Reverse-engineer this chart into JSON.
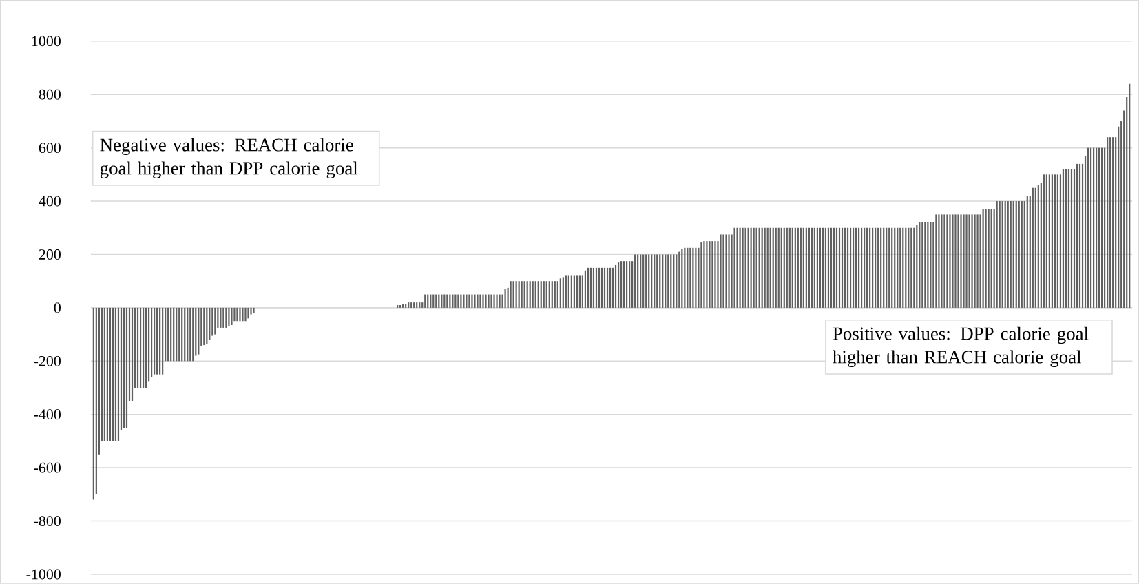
{
  "chart_data": {
    "type": "bar",
    "categories": [
      null,
      null,
      null,
      null,
      null,
      null,
      null,
      null,
      null,
      null,
      null,
      null,
      null,
      null,
      null,
      null,
      null,
      null,
      null,
      null,
      null,
      null,
      null,
      null,
      null,
      null,
      null,
      null,
      null,
      null,
      null,
      null,
      null,
      null,
      null,
      null,
      null,
      null,
      null,
      null,
      null,
      null,
      null,
      null,
      null,
      null,
      null,
      null,
      null,
      null,
      null,
      null,
      null,
      null,
      null,
      null,
      null,
      null,
      null,
      null,
      null,
      null,
      null,
      null,
      null,
      null,
      null,
      null,
      null,
      null,
      null,
      null,
      null,
      null,
      null,
      null,
      null,
      null,
      null,
      null,
      null,
      null,
      null,
      null,
      null,
      null,
      null,
      null,
      null,
      null,
      null,
      null,
      null,
      null,
      null,
      null,
      null,
      null,
      null,
      null,
      null,
      null,
      null,
      null,
      null,
      null,
      null,
      null,
      null,
      null,
      null,
      null,
      null,
      null,
      null,
      null,
      null,
      null,
      null,
      null,
      null,
      null,
      null,
      null,
      null,
      null,
      null,
      null,
      null,
      null,
      null,
      null,
      null,
      null,
      null,
      null,
      null,
      null,
      null,
      null,
      null,
      null,
      null,
      null,
      null,
      null,
      null,
      null,
      null,
      null,
      null,
      null,
      null,
      null,
      null,
      null,
      null,
      null,
      null,
      null,
      null,
      null,
      null,
      null,
      null,
      null,
      null,
      null,
      null,
      null,
      null,
      null,
      null,
      null,
      null,
      null,
      null,
      null,
      null,
      null,
      null,
      null,
      null,
      null,
      null,
      null,
      null,
      null,
      null,
      null,
      null,
      null,
      null,
      null,
      null,
      null,
      null,
      null,
      null,
      null,
      null,
      null,
      null,
      null,
      null,
      null,
      null,
      null,
      null,
      null,
      null,
      null,
      null,
      null,
      null,
      null,
      null,
      null,
      null,
      null,
      null,
      null,
      null,
      null,
      null,
      null,
      null,
      null,
      null,
      null,
      null,
      null,
      null,
      null,
      null,
      null,
      null,
      null,
      null,
      null,
      null,
      null,
      null,
      null,
      null,
      null,
      null,
      null,
      null,
      null,
      null,
      null,
      null,
      null,
      null,
      null,
      null,
      null,
      null,
      null,
      null,
      null,
      null,
      null,
      null,
      null,
      null,
      null,
      null,
      null,
      null,
      null,
      null,
      null,
      null,
      null,
      null,
      null,
      null,
      null,
      null,
      null,
      null,
      null,
      null,
      null,
      null,
      null,
      null,
      null,
      null,
      null,
      null,
      null,
      null,
      null,
      null,
      null,
      null,
      null,
      null,
      null,
      null,
      null,
      null,
      null,
      null,
      null,
      null,
      null,
      null,
      null,
      null,
      null,
      null,
      null,
      null,
      null,
      null,
      null,
      null,
      null,
      null,
      null,
      null,
      null,
      null,
      null,
      null,
      null,
      null,
      null,
      null,
      null,
      null,
      null,
      null,
      null,
      null,
      null,
      null,
      null,
      null,
      null,
      null,
      null,
      null,
      null,
      null,
      null,
      null,
      null,
      null,
      null,
      null,
      null,
      null,
      null,
      null,
      null,
      null,
      null,
      null,
      null,
      null,
      null,
      null,
      null,
      null,
      null,
      null,
      null,
      null,
      null,
      null,
      null
    ],
    "values": [
      -720,
      -700,
      -550,
      -500,
      -500,
      -500,
      -500,
      -500,
      -500,
      -500,
      -460,
      -450,
      -450,
      -350,
      -350,
      -300,
      -300,
      -300,
      -300,
      -300,
      -275,
      -260,
      -250,
      -250,
      -250,
      -250,
      -200,
      -200,
      -200,
      -200,
      -200,
      -200,
      -200,
      -200,
      -200,
      -200,
      -200,
      -180,
      -175,
      -145,
      -140,
      -135,
      -120,
      -105,
      -100,
      -75,
      -75,
      -75,
      -75,
      -70,
      -65,
      -50,
      -50,
      -50,
      -50,
      -50,
      -40,
      -25,
      -20,
      0,
      0,
      0,
      0,
      0,
      0,
      0,
      0,
      0,
      0,
      0,
      0,
      0,
      0,
      0,
      0,
      0,
      0,
      0,
      0,
      0,
      0,
      0,
      0,
      0,
      0,
      0,
      0,
      0,
      0,
      0,
      0,
      0,
      0,
      0,
      0,
      0,
      0,
      0,
      0,
      0,
      0,
      0,
      0,
      0,
      0,
      0,
      0,
      0,
      0,
      0,
      10,
      10,
      15,
      15,
      20,
      20,
      20,
      20,
      20,
      20,
      50,
      50,
      50,
      50,
      50,
      50,
      50,
      50,
      50,
      50,
      50,
      50,
      50,
      50,
      50,
      50,
      50,
      50,
      50,
      50,
      50,
      50,
      50,
      50,
      50,
      50,
      50,
      50,
      50,
      70,
      75,
      100,
      100,
      100,
      100,
      100,
      100,
      100,
      100,
      100,
      100,
      100,
      100,
      100,
      100,
      100,
      100,
      100,
      100,
      110,
      115,
      120,
      120,
      120,
      120,
      120,
      120,
      120,
      140,
      150,
      150,
      150,
      150,
      150,
      150,
      150,
      150,
      150,
      150,
      160,
      170,
      175,
      175,
      175,
      175,
      175,
      200,
      200,
      200,
      200,
      200,
      200,
      200,
      200,
      200,
      200,
      200,
      200,
      200,
      200,
      200,
      200,
      210,
      220,
      225,
      225,
      225,
      225,
      225,
      225,
      245,
      250,
      250,
      250,
      250,
      250,
      250,
      275,
      275,
      275,
      275,
      275,
      300,
      300,
      300,
      300,
      300,
      300,
      300,
      300,
      300,
      300,
      300,
      300,
      300,
      300,
      300,
      300,
      300,
      300,
      300,
      300,
      300,
      300,
      300,
      300,
      300,
      300,
      300,
      300,
      300,
      300,
      300,
      300,
      300,
      300,
      300,
      300,
      300,
      300,
      300,
      300,
      300,
      300,
      300,
      300,
      300,
      300,
      300,
      300,
      300,
      300,
      300,
      300,
      300,
      300,
      300,
      300,
      300,
      300,
      300,
      300,
      300,
      300,
      300,
      300,
      300,
      300,
      310,
      320,
      320,
      320,
      320,
      320,
      320,
      350,
      350,
      350,
      350,
      350,
      350,
      350,
      350,
      350,
      350,
      350,
      350,
      350,
      350,
      350,
      350,
      350,
      370,
      370,
      370,
      370,
      370,
      400,
      400,
      400,
      400,
      400,
      400,
      400,
      400,
      400,
      400,
      400,
      420,
      420,
      450,
      450,
      460,
      470,
      500,
      500,
      500,
      500,
      500,
      500,
      500,
      520,
      520,
      520,
      520,
      520,
      540,
      540,
      540,
      570,
      600,
      600,
      600,
      600,
      600,
      600,
      600,
      640,
      640,
      640,
      640,
      680,
      700,
      740,
      790,
      840
    ],
    "color": "#5f5f5f",
    "ylim": [
      -1000,
      1000
    ],
    "yticks": [
      -1000,
      -800,
      -600,
      -400,
      -200,
      0,
      200,
      400,
      600,
      800,
      1000
    ],
    "grid": "y",
    "annotations": [
      "Negative values: REACH calorie goal higher than DPP calorie goal",
      "Positive values: DPP calorie goal higher than REACH calorie goal"
    ]
  }
}
